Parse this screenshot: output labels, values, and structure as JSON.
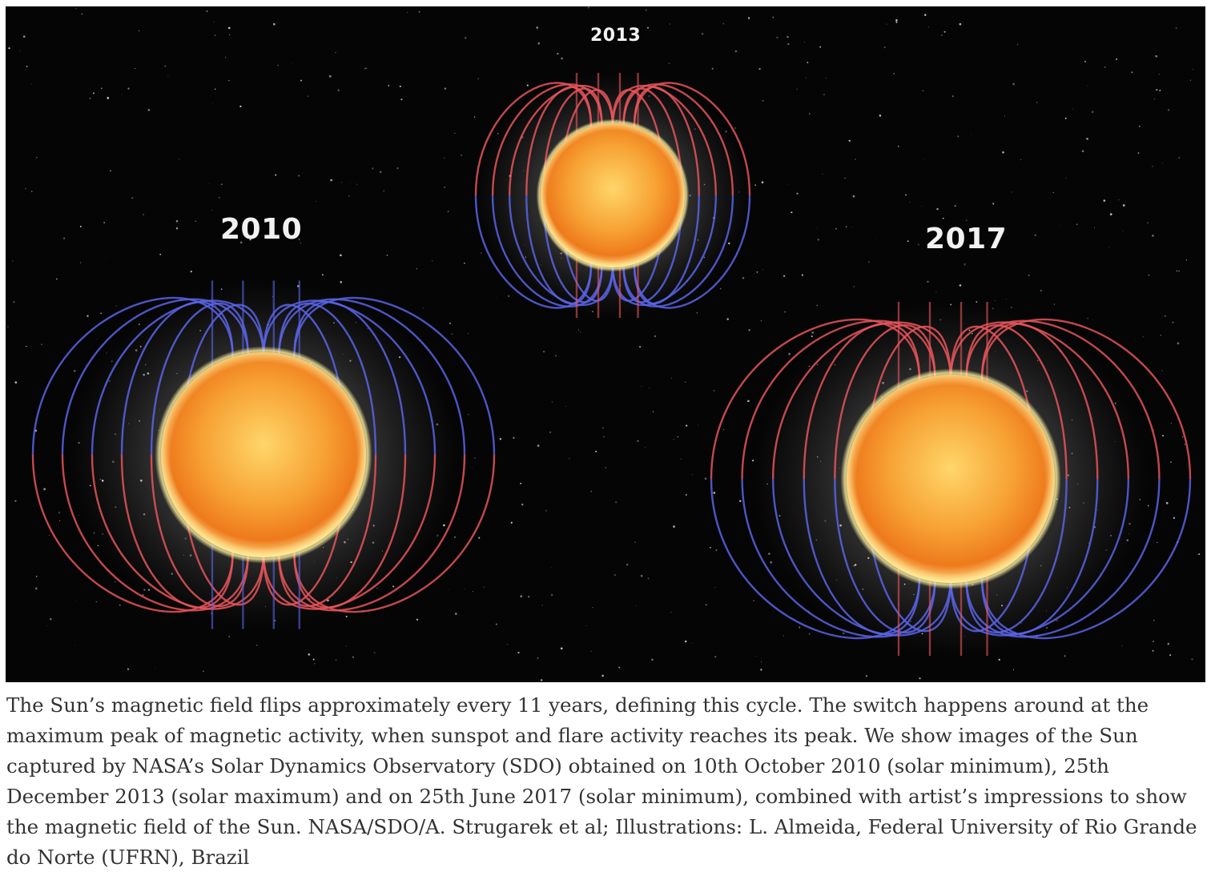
{
  "image": {
    "labels": {
      "year_2013": "2013",
      "year_2010": "2010",
      "year_2017": "2017"
    },
    "colors": {
      "background": "#050505",
      "sun_core": "#ffcf5a",
      "sun_edge": "#e86a12",
      "field_blue": "#5a64e8",
      "field_red": "#e8555a"
    }
  },
  "caption": {
    "text": "The Sun’s magnetic field flips approximately every 11 years, defining this cycle. The switch happens around at the maximum peak of magnetic activity, when sunspot and flare activity reaches its peak. We show images of the Sun captured by NASA’s Solar Dynamics Observatory (SDO) obtained on 10th October 2010 (solar minimum), 25th December 2013 (solar maximum) and on 25th June 2017 (solar minimum), combined with artist’s impressions to show the magnetic field of the Sun. NASA/SDO/A. Strugarek et al; Illustrations: L. Almeida, Federal University of Rio Grande do Norte (UFRN), Brazil"
  }
}
